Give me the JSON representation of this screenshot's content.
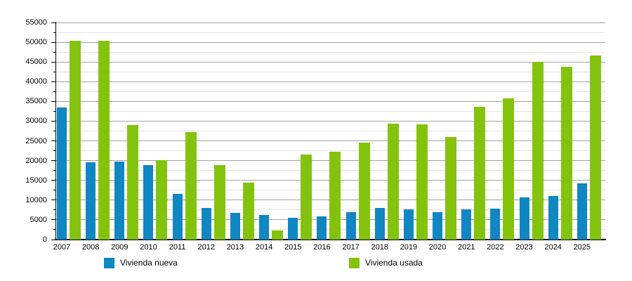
{
  "chart_data": {
    "type": "bar",
    "categories": [
      "2007",
      "2008",
      "2009",
      "2010",
      "2011",
      "2012",
      "2013",
      "2014",
      "2015",
      "2016",
      "2017",
      "2018",
      "2019",
      "2020",
      "2021",
      "2022",
      "2023",
      "2024",
      "2025"
    ],
    "series": [
      {
        "name": "Vivienda nueva",
        "color": "#1086c3",
        "values": [
          33500,
          19600,
          19800,
          18800,
          11500,
          8000,
          6800,
          6200,
          5500,
          5900,
          7000,
          8000,
          7600,
          6900,
          7600,
          7800,
          10600,
          11000,
          14200
        ]
      },
      {
        "name": "Vivienda usada",
        "color": "#84c30d",
        "values": [
          50300,
          50400,
          29000,
          20200,
          27200,
          18800,
          14500,
          2400,
          21600,
          22300,
          24500,
          29400,
          29200,
          26000,
          33600,
          35800,
          45000,
          43800,
          46600
        ]
      }
    ],
    "ylim": [
      0,
      55000
    ],
    "ytick_step": 5000,
    "ytick_minor_step": 2500,
    "yticklabels": [
      "0",
      "5000",
      "10000",
      "15000",
      "20000",
      "25000",
      "30000",
      "35000",
      "40000",
      "45000",
      "50000",
      "55000"
    ],
    "grid": "horizontal major every 5000, minor every 2500",
    "legend_position": "bottom"
  }
}
